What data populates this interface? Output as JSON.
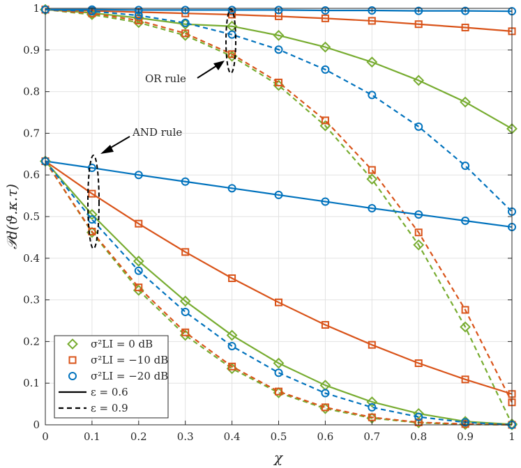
{
  "chart_data": {
    "type": "line",
    "title": "",
    "xlabel": "χ",
    "ylabel": "𝒫d(ϑ.κ.τ)",
    "xlim": [
      0,
      1
    ],
    "ylim": [
      0,
      1
    ],
    "grid": true,
    "x": [
      0,
      0.1,
      0.2,
      0.3,
      0.4,
      0.5,
      0.6,
      0.7,
      0.8,
      0.9,
      1
    ],
    "xticks": [
      "0",
      "0.1",
      "0.2",
      "0.3",
      "0.4",
      "0.5",
      "0.6",
      "0.7",
      "0.8",
      "0.9",
      "1"
    ],
    "yticks": [
      "0",
      "0.1",
      "0.2",
      "0.3",
      "0.4",
      "0.5",
      "0.6",
      "0.7",
      "0.8",
      "0.9",
      "1"
    ],
    "series": [
      {
        "name": "OR, σ²LI = 0 dB, ε = 0.6",
        "color": "#77AC30",
        "marker": "diamond",
        "dash": "solid",
        "values": [
          0.997,
          0.989,
          0.977,
          0.962,
          0.957,
          0.935,
          0.907,
          0.871,
          0.827,
          0.775,
          0.711
        ]
      },
      {
        "name": "OR, σ²LI = −10 dB, ε = 0.6",
        "color": "#D95319",
        "marker": "square",
        "dash": "solid",
        "values": [
          0.997,
          0.994,
          0.991,
          0.988,
          0.985,
          0.981,
          0.976,
          0.97,
          0.962,
          0.954,
          0.945
        ]
      },
      {
        "name": "OR, σ²LI = −20 dB, ε = 0.6",
        "color": "#0072BD",
        "marker": "circle",
        "dash": "solid",
        "values": [
          0.997,
          0.997,
          0.996,
          0.996,
          0.996,
          0.996,
          0.995,
          0.995,
          0.994,
          0.994,
          0.993
        ]
      },
      {
        "name": "OR, σ²LI = 0 dB, ε = 0.9",
        "color": "#77AC30",
        "marker": "diamond",
        "dash": "dashed",
        "values": [
          0.997,
          0.985,
          0.966,
          0.935,
          0.885,
          0.815,
          0.718,
          0.59,
          0.432,
          0.235,
          0.002
        ]
      },
      {
        "name": "OR, σ²LI = −10 dB, ε = 0.9",
        "color": "#D95319",
        "marker": "square",
        "dash": "dashed",
        "values": [
          0.997,
          0.988,
          0.971,
          0.94,
          0.89,
          0.822,
          0.731,
          0.612,
          0.462,
          0.276,
          0.054
        ]
      },
      {
        "name": "OR, σ²LI = −20 dB, ε = 0.9",
        "color": "#0072BD",
        "marker": "circle",
        "dash": "dashed",
        "values": [
          0.997,
          0.993,
          0.983,
          0.965,
          0.937,
          0.901,
          0.853,
          0.792,
          0.716,
          0.622,
          0.512
        ]
      },
      {
        "name": "AND, σ²LI = 0 dB, ε = 0.6",
        "color": "#77AC30",
        "marker": "diamond",
        "dash": "solid",
        "values": [
          0.633,
          0.505,
          0.393,
          0.297,
          0.215,
          0.148,
          0.095,
          0.055,
          0.027,
          0.008,
          0.001
        ]
      },
      {
        "name": "AND, σ²LI = −10 dB, ε = 0.6",
        "color": "#D95319",
        "marker": "square",
        "dash": "solid",
        "values": [
          0.633,
          0.555,
          0.483,
          0.415,
          0.352,
          0.294,
          0.24,
          0.192,
          0.148,
          0.109,
          0.074
        ]
      },
      {
        "name": "AND, σ²LI = −20 dB, ε = 0.6",
        "color": "#0072BD",
        "marker": "circle",
        "dash": "solid",
        "values": [
          0.633,
          0.617,
          0.6,
          0.584,
          0.568,
          0.552,
          0.536,
          0.52,
          0.505,
          0.49,
          0.475
        ]
      },
      {
        "name": "AND, σ²LI = 0 dB, ε = 0.9",
        "color": "#77AC30",
        "marker": "diamond",
        "dash": "dashed",
        "values": [
          0.633,
          0.462,
          0.323,
          0.215,
          0.135,
          0.077,
          0.039,
          0.016,
          0.005,
          0.001,
          0.0
        ]
      },
      {
        "name": "AND, σ²LI = −10 dB, ε = 0.9",
        "color": "#D95319",
        "marker": "square",
        "dash": "dashed",
        "values": [
          0.633,
          0.464,
          0.33,
          0.222,
          0.14,
          0.08,
          0.042,
          0.018,
          0.006,
          0.002,
          0.0
        ]
      },
      {
        "name": "AND, σ²LI = −20 dB, ε = 0.9",
        "color": "#0072BD",
        "marker": "circle",
        "dash": "dashed",
        "values": [
          0.633,
          0.493,
          0.37,
          0.271,
          0.189,
          0.125,
          0.076,
          0.042,
          0.019,
          0.006,
          0.0
        ]
      }
    ],
    "legend": {
      "placement": "bottom-left",
      "entries": [
        {
          "label": "σ²LI = 0 dB",
          "color": "#77AC30",
          "marker": "diamond",
          "dash": "none"
        },
        {
          "label": "σ²LI = −10 dB",
          "color": "#D95319",
          "marker": "square",
          "dash": "none"
        },
        {
          "label": "σ²LI = −20 dB",
          "color": "#0072BD",
          "marker": "circle",
          "dash": "none"
        },
        {
          "label": "ε = 0.6",
          "color": "#000000",
          "marker": "none",
          "dash": "solid"
        },
        {
          "label": "ε = 0.9",
          "color": "#000000",
          "marker": "none",
          "dash": "dashed"
        }
      ]
    },
    "annotations": [
      {
        "text": "OR rule",
        "points_to": {
          "x": 0.4,
          "y": 0.92
        }
      },
      {
        "text": "AND rule",
        "points_to": {
          "x": 0.1,
          "y": 0.54
        }
      }
    ]
  }
}
